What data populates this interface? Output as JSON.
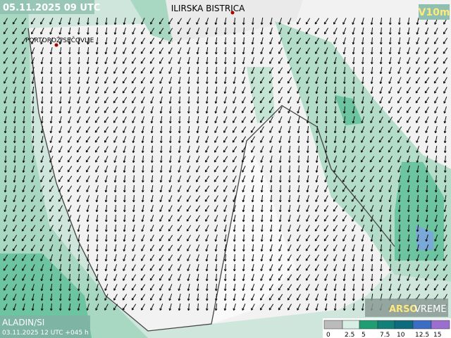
{
  "header": {
    "datetime": "05.11.2025 09 UTC",
    "field": "V10m"
  },
  "places": [
    {
      "label": "ILIRSKA BISTRICA"
    },
    {
      "label": "PORTOROŽ/SEČOVLJE"
    }
  ],
  "footer": {
    "model": "ALADIN/SI",
    "run": "03.11.2025 12 UTC +045 h",
    "brand": "ARSO",
    "brand2": "VREME"
  },
  "legend": {
    "labels": [
      "0",
      "2.5",
      "5",
      "7.5",
      "10",
      "12.5",
      "15"
    ]
  }
}
